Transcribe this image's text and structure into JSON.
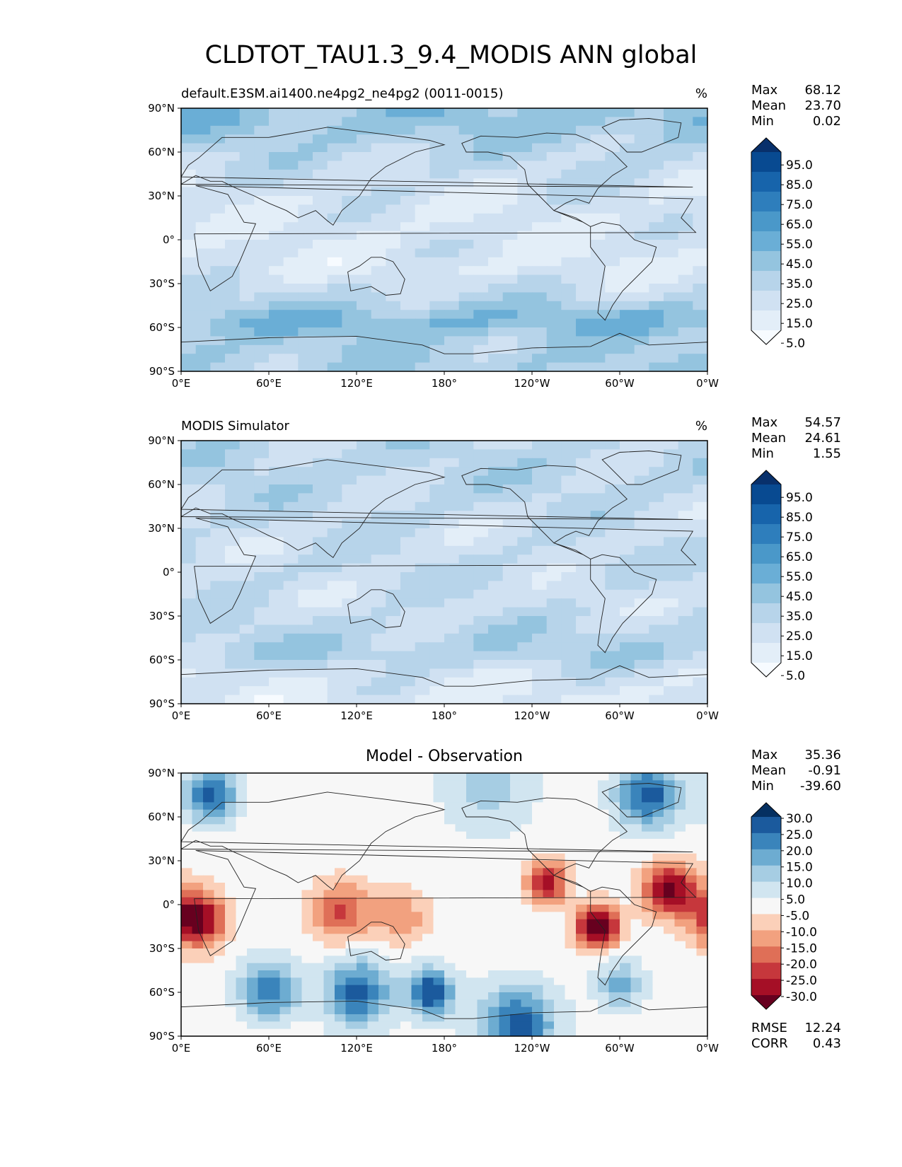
{
  "figure": {
    "title": "CLDTOT_TAU1.3_9.4_MODIS ANN global"
  },
  "chart_data": [
    {
      "type": "heatmap",
      "panel": "test",
      "title_left": "default.E3SM.ai1400.ne4pg2_ne4pg2 (0011-0015)",
      "units": "%",
      "stats": {
        "max_label": "Max",
        "max": "68.12",
        "mean_label": "Mean",
        "mean": "23.70",
        "min_label": "Min",
        "min": "0.02"
      },
      "colorbar_ticks": [
        "95.0",
        "85.0",
        "75.0",
        "65.0",
        "55.0",
        "45.0",
        "35.0",
        "25.0",
        "15.0",
        "5.0"
      ],
      "colors": [
        "#f7fbff",
        "#e3eef8",
        "#d0e1f2",
        "#b7d4ea",
        "#94c4df",
        "#6aaed6",
        "#4a98c9",
        "#2e7ebc",
        "#1764ab",
        "#084a91",
        "#08306b"
      ],
      "zonal_mean_pct": [
        {
          "lat": 80,
          "v": 40
        },
        {
          "lat": 60,
          "v": 30
        },
        {
          "lat": 40,
          "v": 24
        },
        {
          "lat": 20,
          "v": 20
        },
        {
          "lat": 0,
          "v": 20
        },
        {
          "lat": -20,
          "v": 18
        },
        {
          "lat": -40,
          "v": 30
        },
        {
          "lat": -55,
          "v": 47
        },
        {
          "lat": -70,
          "v": 35
        },
        {
          "lat": -85,
          "v": 35
        }
      ]
    },
    {
      "type": "heatmap",
      "panel": "reference",
      "title_left": "MODIS Simulator",
      "units": "%",
      "stats": {
        "max_label": "Max",
        "max": "54.57",
        "mean_label": "Mean",
        "mean": "24.61",
        "min_label": "Min",
        "min": "1.55"
      },
      "colorbar_ticks": [
        "95.0",
        "85.0",
        "75.0",
        "65.0",
        "55.0",
        "45.0",
        "35.0",
        "25.0",
        "15.0",
        "5.0"
      ],
      "colors": [
        "#f7fbff",
        "#e3eef8",
        "#d0e1f2",
        "#b7d4ea",
        "#94c4df",
        "#6aaed6",
        "#4a98c9",
        "#2e7ebc",
        "#1764ab",
        "#084a91",
        "#08306b"
      ],
      "zonal_mean_pct": [
        {
          "lat": 80,
          "v": 30
        },
        {
          "lat": 60,
          "v": 30
        },
        {
          "lat": 40,
          "v": 27
        },
        {
          "lat": 20,
          "v": 25
        },
        {
          "lat": 0,
          "v": 27
        },
        {
          "lat": -20,
          "v": 24
        },
        {
          "lat": -40,
          "v": 30
        },
        {
          "lat": -55,
          "v": 35
        },
        {
          "lat": -70,
          "v": 22
        },
        {
          "lat": -85,
          "v": 18
        }
      ]
    },
    {
      "type": "heatmap",
      "panel": "difference",
      "title_center": "Model - Observation",
      "stats": {
        "max_label": "Max",
        "max": "35.36",
        "mean_label": "Mean",
        "mean": "-0.91",
        "min_label": "Min",
        "min": "-39.60"
      },
      "metrics": {
        "rmse_label": "RMSE",
        "rmse": "12.24",
        "corr_label": "CORR",
        "corr": "0.43"
      },
      "colorbar_ticks": [
        "30.0",
        "25.0",
        "20.0",
        "15.0",
        "10.0",
        "5.0",
        "-5.0",
        "-10.0",
        "-15.0",
        "-20.0",
        "-25.0",
        "-30.0"
      ],
      "colors": [
        "#67001f",
        "#a50f26",
        "#c6373c",
        "#df6f57",
        "#f2a17f",
        "#fbd0b9",
        "#f7f7f7",
        "#d1e5f0",
        "#a6cde3",
        "#6dacd1",
        "#3a84bb",
        "#1b5a9d",
        "#053061"
      ]
    }
  ],
  "axes": {
    "lat_ticks": [
      "90°N",
      "60°N",
      "30°N",
      "0°",
      "30°S",
      "60°S",
      "90°S"
    ],
    "lon_ticks": [
      "0°E",
      "60°E",
      "120°E",
      "180°",
      "120°W",
      "60°W",
      "0°W"
    ]
  }
}
